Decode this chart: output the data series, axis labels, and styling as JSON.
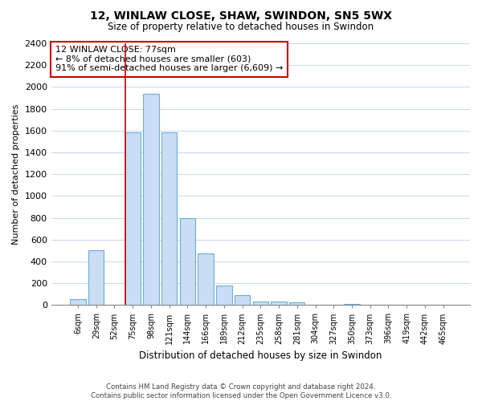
{
  "title": "12, WINLAW CLOSE, SHAW, SWINDON, SN5 5WX",
  "subtitle": "Size of property relative to detached houses in Swindon",
  "xlabel": "Distribution of detached houses by size in Swindon",
  "ylabel": "Number of detached properties",
  "bar_labels": [
    "6sqm",
    "29sqm",
    "52sqm",
    "75sqm",
    "98sqm",
    "121sqm",
    "144sqm",
    "166sqm",
    "189sqm",
    "212sqm",
    "235sqm",
    "258sqm",
    "281sqm",
    "304sqm",
    "327sqm",
    "350sqm",
    "373sqm",
    "396sqm",
    "419sqm",
    "442sqm",
    "465sqm"
  ],
  "bar_values": [
    55,
    505,
    0,
    1585,
    1940,
    1585,
    800,
    470,
    175,
    90,
    35,
    30,
    25,
    0,
    0,
    10,
    0,
    0,
    0,
    0,
    0
  ],
  "bar_color": "#c9ddf5",
  "bar_edge_color": "#6baed6",
  "annotation_title": "12 WINLAW CLOSE: 77sqm",
  "annotation_line1": "← 8% of detached houses are smaller (603)",
  "annotation_line2": "91% of semi-detached houses are larger (6,609) →",
  "annotation_box_facecolor": "#ffffff",
  "annotation_box_edgecolor": "#cc0000",
  "vline_x": 3,
  "vline_color": "#cc0000",
  "ylim": [
    0,
    2400
  ],
  "yticks": [
    0,
    200,
    400,
    600,
    800,
    1000,
    1200,
    1400,
    1600,
    1800,
    2000,
    2200,
    2400
  ],
  "footer_line1": "Contains HM Land Registry data © Crown copyright and database right 2024.",
  "footer_line2": "Contains public sector information licensed under the Open Government Licence v3.0.",
  "bg_color": "#ffffff",
  "grid_color": "#c8d8ec"
}
